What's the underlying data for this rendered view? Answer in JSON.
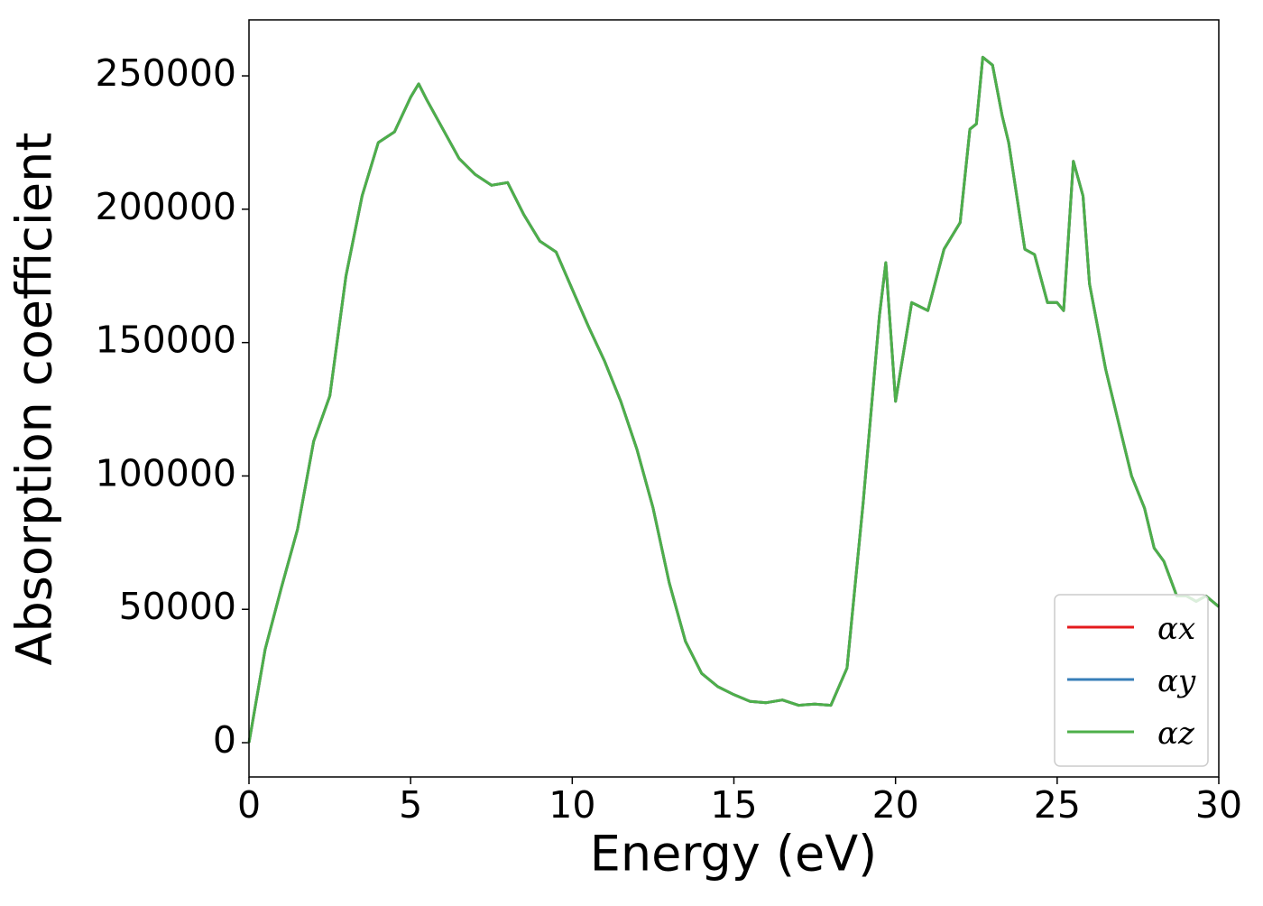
{
  "chart_data": {
    "type": "line",
    "xlabel": "Energy (eV)",
    "ylabel": "Absorption coefficient",
    "x": [
      0,
      0.5,
      1,
      1.5,
      2,
      2.5,
      3,
      3.5,
      4,
      4.5,
      5,
      5.25,
      5.5,
      6,
      6.5,
      7,
      7.5,
      8,
      8.5,
      9,
      9.5,
      10,
      10.5,
      11,
      11.5,
      12,
      12.5,
      13,
      13.5,
      14,
      14.5,
      15,
      15.5,
      16,
      16.5,
      17,
      17.5,
      18,
      18.5,
      19,
      19.5,
      19.7,
      20,
      20.5,
      21,
      21.5,
      22,
      22.3,
      22.5,
      22.7,
      23,
      23.3,
      23.5,
      24,
      24.3,
      24.7,
      25,
      25.2,
      25.5,
      25.8,
      26,
      26.5,
      27,
      27.3,
      27.7,
      28,
      28.3,
      28.7,
      29,
      29.3,
      29.6,
      30
    ],
    "series": [
      {
        "name": "αx",
        "color": "#e41a1c",
        "values": [
          0,
          35000,
          58000,
          80000,
          113000,
          130000,
          175000,
          205000,
          225000,
          229000,
          242000,
          247000,
          241000,
          230000,
          219000,
          213000,
          209000,
          210000,
          198000,
          188000,
          184000,
          170000,
          156000,
          143000,
          128000,
          110000,
          88000,
          60000,
          38000,
          26000,
          21000,
          18000,
          15500,
          15000,
          16000,
          14000,
          14500,
          14000,
          28000,
          90000,
          160000,
          180000,
          128000,
          165000,
          162000,
          185000,
          195000,
          230000,
          232000,
          257000,
          254000,
          235000,
          225000,
          185000,
          183000,
          165000,
          165000,
          162000,
          218000,
          205000,
          172000,
          140000,
          115000,
          100000,
          88000,
          73000,
          68000,
          55000,
          55000,
          53000,
          55000,
          51000
        ]
      },
      {
        "name": "αy",
        "color": "#377eb8",
        "values": [
          0,
          35000,
          58000,
          80000,
          113000,
          130000,
          175000,
          205000,
          225000,
          229000,
          242000,
          247000,
          241000,
          230000,
          219000,
          213000,
          209000,
          210000,
          198000,
          188000,
          184000,
          170000,
          156000,
          143000,
          128000,
          110000,
          88000,
          60000,
          38000,
          26000,
          21000,
          18000,
          15500,
          15000,
          16000,
          14000,
          14500,
          14000,
          28000,
          90000,
          160000,
          180000,
          128000,
          165000,
          162000,
          185000,
          195000,
          230000,
          232000,
          257000,
          254000,
          235000,
          225000,
          185000,
          183000,
          165000,
          165000,
          162000,
          218000,
          205000,
          172000,
          140000,
          115000,
          100000,
          88000,
          73000,
          68000,
          55000,
          55000,
          53000,
          55000,
          51000
        ]
      },
      {
        "name": "αz",
        "color": "#4daf4a",
        "values": [
          0,
          35000,
          58000,
          80000,
          113000,
          130000,
          175000,
          205000,
          225000,
          229000,
          242000,
          247000,
          241000,
          230000,
          219000,
          213000,
          209000,
          210000,
          198000,
          188000,
          184000,
          170000,
          156000,
          143000,
          128000,
          110000,
          88000,
          60000,
          38000,
          26000,
          21000,
          18000,
          15500,
          15000,
          16000,
          14000,
          14500,
          14000,
          28000,
          90000,
          160000,
          180000,
          128000,
          165000,
          162000,
          185000,
          195000,
          230000,
          232000,
          257000,
          254000,
          235000,
          225000,
          185000,
          183000,
          165000,
          165000,
          162000,
          218000,
          205000,
          172000,
          140000,
          115000,
          100000,
          88000,
          73000,
          68000,
          55000,
          55000,
          53000,
          55000,
          51000
        ]
      }
    ],
    "xlim": [
      0,
      30
    ],
    "xticks": [
      0,
      5,
      10,
      15,
      20,
      25,
      30
    ],
    "ylim": [
      -12850,
      271000
    ],
    "yticks": [
      0,
      50000,
      100000,
      150000,
      200000,
      250000
    ],
    "legend": "lower right",
    "grid": false
  }
}
